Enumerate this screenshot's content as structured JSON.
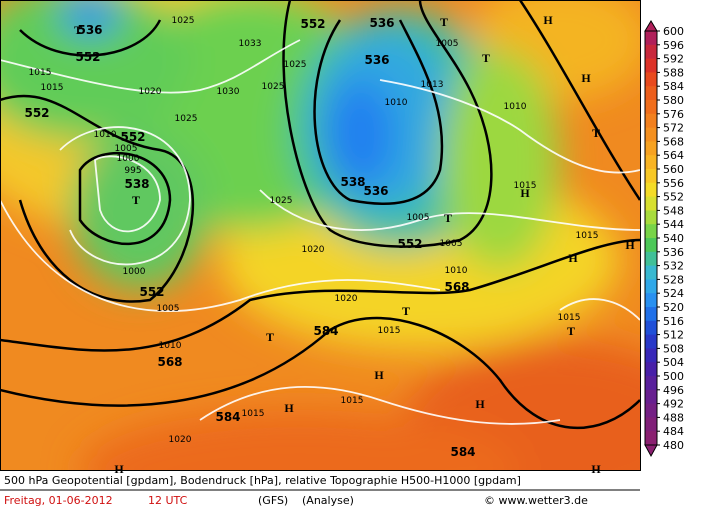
{
  "legend": {
    "levels": [
      600,
      596,
      592,
      588,
      584,
      580,
      576,
      572,
      568,
      564,
      560,
      556,
      552,
      548,
      544,
      540,
      536,
      532,
      528,
      524,
      520,
      516,
      512,
      508,
      504,
      500,
      496,
      492,
      488,
      484,
      480
    ],
    "colors": [
      "#b0205a",
      "#c8283c",
      "#dc3228",
      "#e84a1e",
      "#ec5e1c",
      "#f06e1c",
      "#f2801e",
      "#f49020",
      "#f6a222",
      "#f8b424",
      "#f8c826",
      "#f4dc28",
      "#d8e030",
      "#a8dc3c",
      "#78d448",
      "#4cc858",
      "#40c098",
      "#38b8d0",
      "#30a8e8",
      "#2890f0",
      "#2070e8",
      "#2050d8",
      "#2838c8",
      "#3828b8",
      "#4820a8",
      "#58209c",
      "#682090",
      "#742084",
      "#802078",
      "#8a2070"
    ]
  },
  "labels": {
    "geopotential": [
      "536",
      "552",
      "552",
      "552",
      "538",
      "552",
      "568",
      "584",
      "584",
      "552",
      "536",
      "536",
      "538",
      "536",
      "552",
      "568",
      "584"
    ],
    "pressure": [
      "1015",
      "1015",
      "1025",
      "1033",
      "1025",
      "1030",
      "1025",
      "1020",
      "1025",
      "1010",
      "1005",
      "1000",
      "995",
      "1000",
      "1005",
      "1010",
      "1025",
      "1020",
      "1020",
      "1015",
      "1015",
      "1015",
      "1020",
      "1010",
      "1013",
      "1005",
      "1010",
      "1015",
      "1005",
      "1005",
      "1010",
      "1015",
      "1015"
    ],
    "centers": [
      "T",
      "T",
      "T",
      "T",
      "T",
      "T",
      "T",
      "T",
      "T",
      "H",
      "H",
      "H",
      "H",
      "H",
      "H",
      "H",
      "H",
      "H",
      "H"
    ]
  },
  "footer": {
    "description": "500 hPa Geopotential [gpdam], Bodendruck [hPa], relative Topographie H500-H1000 [gpdam]",
    "date": "Freitag, 01-06-2012",
    "time": "12 UTC",
    "model": "(GFS)",
    "run": "(Analyse)",
    "copyright": "© www.wetter3.de"
  }
}
